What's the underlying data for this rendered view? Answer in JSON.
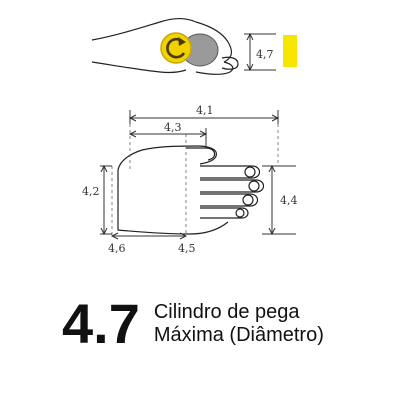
{
  "diagram": {
    "top_view_dim": "4,7",
    "marker_color": "#f7e600",
    "rotate_icon": "rotate-arrow-icon",
    "rotate_icon_color": "#f2d100",
    "dims": {
      "width_outer": "4,1",
      "width_inner": "4,3",
      "height_left": "4,2",
      "height_right": "4,4",
      "base_left": "4,6",
      "base_right": "4,5"
    }
  },
  "caption": {
    "number": "4.7",
    "line1": "Cilindro de pega",
    "line2": "Máxima (Diâmetro)"
  }
}
